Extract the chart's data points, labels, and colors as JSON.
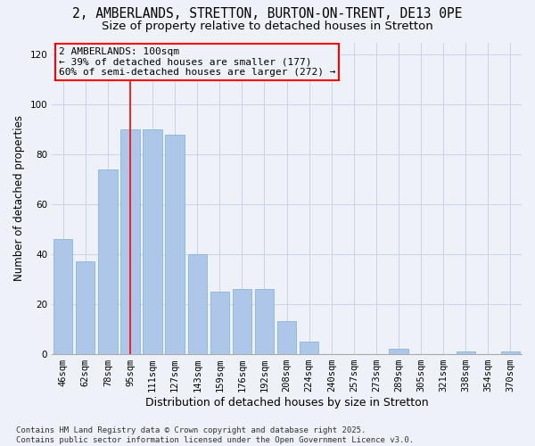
{
  "title": "2, AMBERLANDS, STRETTON, BURTON-ON-TRENT, DE13 0PE",
  "subtitle": "Size of property relative to detached houses in Stretton",
  "xlabel": "Distribution of detached houses by size in Stretton",
  "ylabel": "Number of detached properties",
  "categories": [
    "46sqm",
    "62sqm",
    "78sqm",
    "95sqm",
    "111sqm",
    "127sqm",
    "143sqm",
    "159sqm",
    "176sqm",
    "192sqm",
    "208sqm",
    "224sqm",
    "240sqm",
    "257sqm",
    "273sqm",
    "289sqm",
    "305sqm",
    "321sqm",
    "338sqm",
    "354sqm",
    "370sqm"
  ],
  "values": [
    46,
    37,
    74,
    90,
    90,
    88,
    40,
    25,
    26,
    26,
    13,
    5,
    0,
    0,
    0,
    2,
    0,
    0,
    1,
    0,
    1
  ],
  "bar_color": "#aec6e8",
  "bar_edge_color": "#7aaed4",
  "grid_color": "#c8d4e8",
  "background_color": "#eef2f8",
  "vline_x_index": 3,
  "vline_color": "red",
  "annotation_line1": "2 AMBERLANDS: 100sqm",
  "annotation_line2": "← 39% of detached houses are smaller (177)",
  "annotation_line3": "60% of semi-detached houses are larger (272) →",
  "ylim": [
    0,
    125
  ],
  "yticks": [
    0,
    20,
    40,
    60,
    80,
    100,
    120
  ],
  "footnote": "Contains HM Land Registry data © Crown copyright and database right 2025.\nContains public sector information licensed under the Open Government Licence v3.0.",
  "title_fontsize": 10.5,
  "subtitle_fontsize": 9.5,
  "xlabel_fontsize": 9,
  "ylabel_fontsize": 8.5,
  "tick_fontsize": 7.5,
  "annotation_fontsize": 8,
  "footnote_fontsize": 6.5
}
